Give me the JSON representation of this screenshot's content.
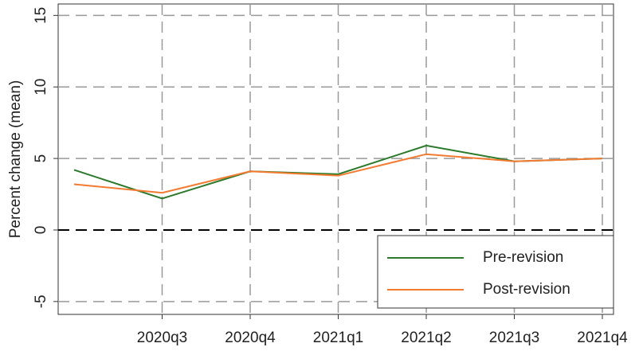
{
  "chart_data": {
    "type": "line",
    "y_label": "Percent change (mean)",
    "categories": [
      null,
      "2020q3",
      "2020q4",
      "2021q1",
      "2021q2",
      "2021q3",
      "2021q4"
    ],
    "series": [
      {
        "name": "Pre-revision",
        "color": "#2a7a2a",
        "values": [
          4.2,
          2.2,
          4.1,
          3.9,
          5.9,
          4.8,
          5.0
        ]
      },
      {
        "name": "Post-revision",
        "color": "#f47a30",
        "values": [
          3.2,
          2.6,
          4.1,
          3.8,
          5.3,
          4.8,
          5.0
        ]
      }
    ],
    "ylim": [
      -5.9,
      15.8
    ],
    "yticks": [
      -5,
      0,
      5,
      10,
      15
    ],
    "grid": true,
    "legend": "bottom-right"
  }
}
